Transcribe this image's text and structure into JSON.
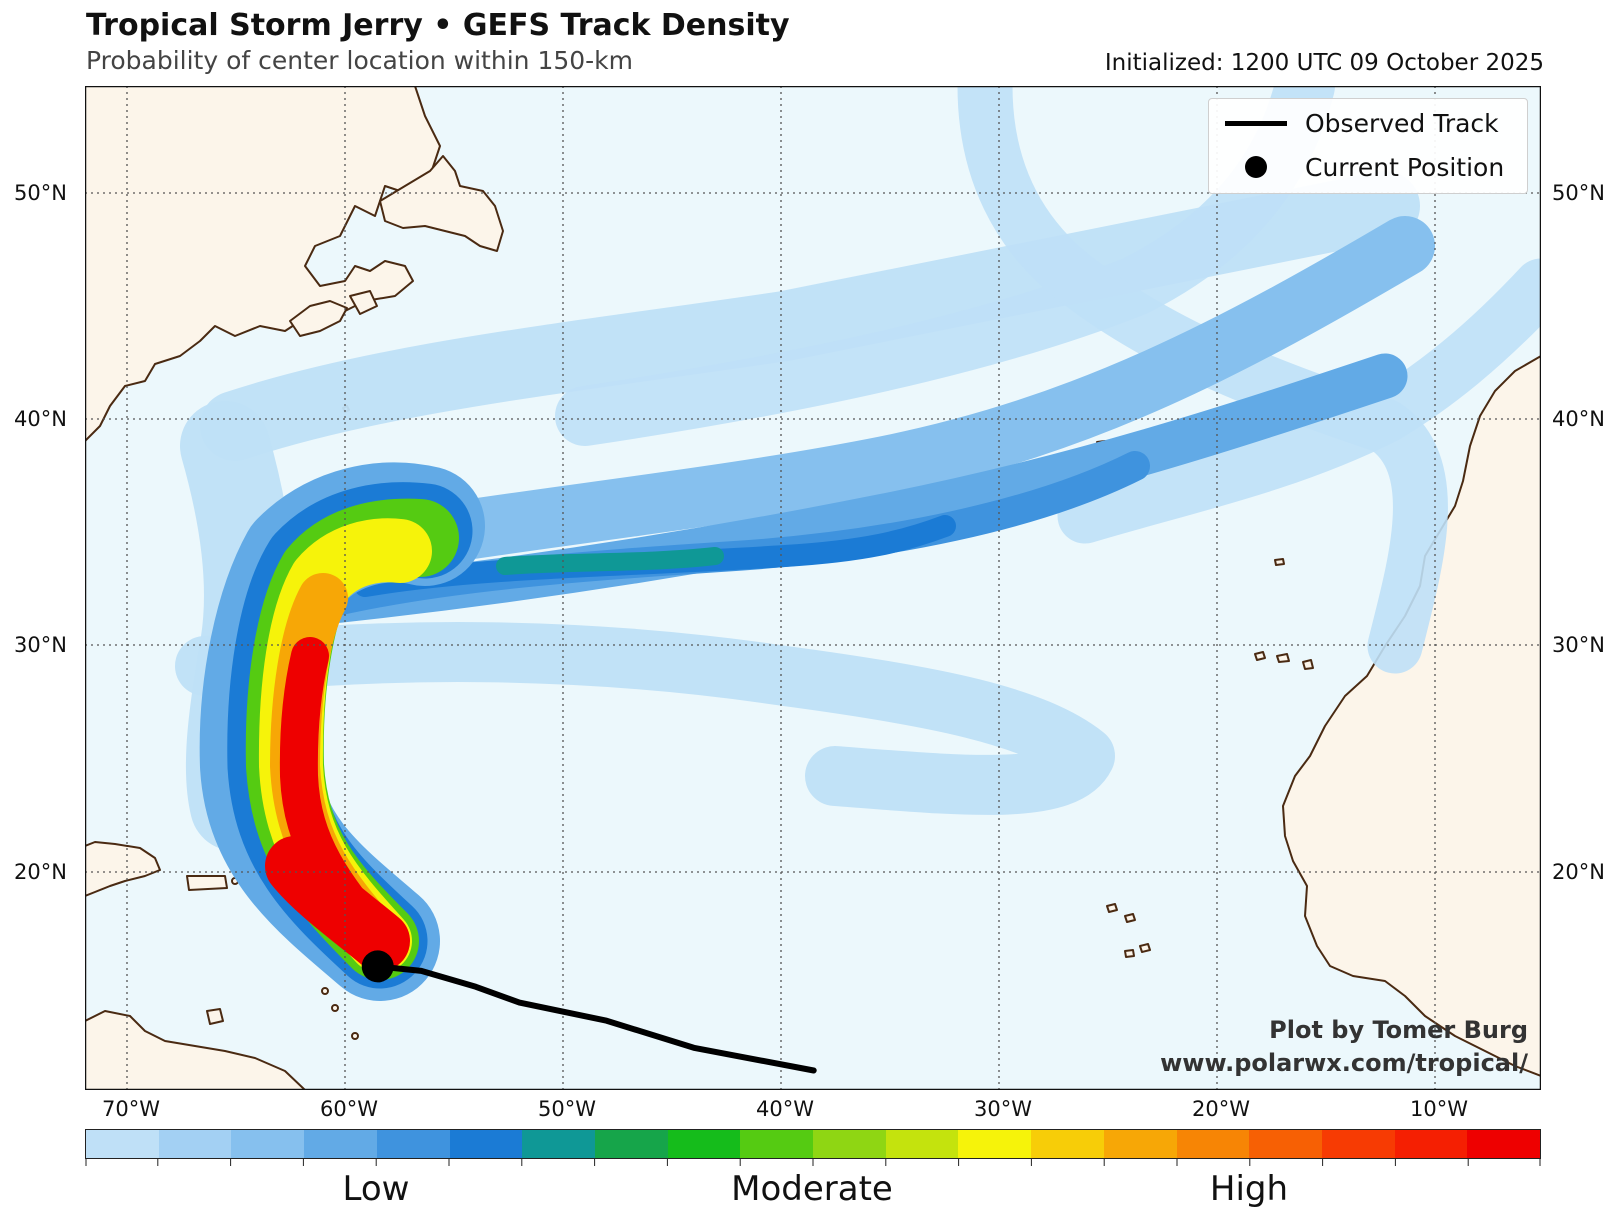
{
  "title": "Tropical Storm Jerry • GEFS Track Density",
  "subtitle": "Probability of center location within 150-km",
  "initialized": "Initialized: 1200 UTC 09 October 2025",
  "legend": {
    "observed_track": "Observed Track",
    "current_position": "Current Position"
  },
  "credit": {
    "line1": "Plot by Tomer Burg",
    "line2": "www.polarwx.com/tropical/"
  },
  "axes": {
    "lat_labels": [
      "50°N",
      "40°N",
      "30°N",
      "20°N"
    ],
    "lon_labels": [
      "70°W",
      "60°W",
      "50°W",
      "40°W",
      "30°W",
      "20°W",
      "10°W"
    ]
  },
  "colorbar": {
    "labels": [
      "Low",
      "Moderate",
      "High"
    ],
    "colors": [
      "#bfe0f7",
      "#a3d0f3",
      "#86c0ee",
      "#62aae6",
      "#3f93de",
      "#1b7bd5",
      "#0f9896",
      "#16a54a",
      "#15bc1b",
      "#55cb12",
      "#8fd613",
      "#c4e30d",
      "#f6f30a",
      "#f7cd08",
      "#f7a706",
      "#f78505",
      "#f76004",
      "#f73b03",
      "#f51f02",
      "#ee0000"
    ]
  },
  "colors": {
    "ocean": "#ecf8fc",
    "land": "#fcf5ea",
    "coast": "#4a2a12",
    "track": "#000000"
  },
  "observed_track": [
    {
      "lon": -38.5,
      "lat": 11.2
    },
    {
      "lon": -44,
      "lat": 12.2
    },
    {
      "lon": -48,
      "lat": 13.4
    },
    {
      "lon": -52,
      "lat": 14.2
    },
    {
      "lon": -54,
      "lat": 14.9
    },
    {
      "lon": -56.5,
      "lat": 15.6
    },
    {
      "lon": -58.5,
      "lat": 15.8
    }
  ],
  "current_position": {
    "lon": -58.5,
    "lat": 15.8
  }
}
